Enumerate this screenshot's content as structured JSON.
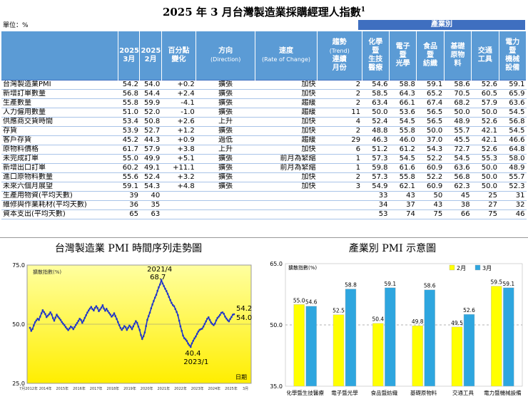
{
  "title": "2025 年 3 月台灣製造業採購經理人指數",
  "title_note": "1",
  "unit_label": "單位：%",
  "category_header": "產業別",
  "table": {
    "headers": [
      {
        "lines": [
          "2025",
          "3月"
        ]
      },
      {
        "lines": [
          "2025",
          "2月"
        ]
      },
      {
        "lines": [
          "百分點",
          "變化"
        ]
      },
      {
        "lines": [
          "方向",
          "(Direction)"
        ]
      },
      {
        "lines": [
          "速度",
          "(Rate of Change)"
        ]
      },
      {
        "lines": [
          "趨勢",
          "(Trend)",
          "連續",
          "月份"
        ]
      },
      {
        "lines": [
          "化學",
          "暨",
          "生技",
          "醫療"
        ]
      },
      {
        "lines": [
          "電子",
          "暨",
          "光學"
        ]
      },
      {
        "lines": [
          "食品",
          "暨",
          "紡織"
        ]
      },
      {
        "lines": [
          "基礎",
          "原物",
          "料"
        ]
      },
      {
        "lines": [
          "交通",
          "工具"
        ]
      },
      {
        "lines": [
          "電力",
          "暨",
          "機械",
          "設備"
        ]
      }
    ],
    "rows": [
      [
        "台灣製造業PMI",
        "54.2",
        "54.0",
        "+0.2",
        "擴張",
        "加快",
        "2",
        "54.6",
        "58.8",
        "59.1",
        "58.6",
        "52.6",
        "59.1"
      ],
      [
        "新增訂單數量",
        "56.8",
        "54.4",
        "+2.4",
        "擴張",
        "加快",
        "2",
        "58.5",
        "64.3",
        "65.2",
        "70.5",
        "60.5",
        "65.9"
      ],
      [
        "生產數量",
        "55.8",
        "59.9",
        "-4.1",
        "擴張",
        "趨緩",
        "2",
        "63.4",
        "66.1",
        "67.4",
        "68.2",
        "57.9",
        "63.6"
      ],
      [
        "人力僱用數量",
        "51.0",
        "52.0",
        "-1.0",
        "擴張",
        "趨緩",
        "11",
        "50.0",
        "53.6",
        "56.5",
        "50.0",
        "50.0",
        "54.5"
      ],
      [
        "供應商交貨時間",
        "53.4",
        "50.8",
        "+2.6",
        "上升",
        "加快",
        "4",
        "52.4",
        "54.5",
        "56.5",
        "48.9",
        "52.6",
        "56.8"
      ],
      [
        "存貨",
        "53.9",
        "52.7",
        "+1.2",
        "擴張",
        "加快",
        "2",
        "48.8",
        "55.8",
        "50.0",
        "55.7",
        "42.1",
        "54.5"
      ],
      [
        "客戶存貨",
        "45.2",
        "44.3",
        "+0.9",
        "過低",
        "趨緩",
        "29",
        "46.3",
        "46.0",
        "37.0",
        "45.5",
        "42.1",
        "46.6"
      ],
      [
        "原物料價格",
        "61.7",
        "57.9",
        "+3.8",
        "上升",
        "加快",
        "6",
        "51.2",
        "61.2",
        "54.3",
        "72.7",
        "52.6",
        "64.8"
      ],
      [
        "未完成訂單",
        "55.0",
        "49.9",
        "+5.1",
        "擴張",
        "前月為緊縮",
        "1",
        "57.3",
        "54.5",
        "52.2",
        "54.5",
        "55.3",
        "58.0"
      ],
      [
        "新增出口訂單",
        "60.2",
        "49.1",
        "+11.1",
        "擴張",
        "前月為緊縮",
        "1",
        "59.8",
        "61.6",
        "60.9",
        "63.6",
        "50.0",
        "48.9"
      ],
      [
        "進口原物料數量",
        "55.6",
        "52.4",
        "+3.2",
        "擴張",
        "加快",
        "2",
        "57.3",
        "55.8",
        "52.2",
        "56.8",
        "50.0",
        "55.7"
      ],
      [
        "未來六個月展望",
        "59.1",
        "54.3",
        "+4.8",
        "擴張",
        "加快",
        "3",
        "54.9",
        "62.1",
        "60.9",
        "62.3",
        "50.0",
        "52.3"
      ],
      [
        "生產用物資(平均天數)",
        "39",
        "40",
        "",
        "",
        "",
        "",
        "33",
        "43",
        "50",
        "45",
        "25",
        "31"
      ],
      [
        "維修與作業耗材(平均天數)",
        "36",
        "35",
        "",
        "",
        "",
        "",
        "34",
        "37",
        "43",
        "38",
        "27",
        "32"
      ],
      [
        "資本支出(平均天數)",
        "65",
        "63",
        "",
        "",
        "",
        "",
        "53",
        "74",
        "75",
        "66",
        "75",
        "46"
      ]
    ]
  },
  "colors": {
    "header_bg": "#5b9bd5",
    "category_bg": "#3f6fc0",
    "bar_feb": "#ffff00",
    "bar_mar": "#2ea6df",
    "line": "#1f35c8",
    "chart_bg_top": "#ffffa0",
    "chart_bg_bottom": "#ffee00"
  },
  "chart_data": [
    {
      "type": "line",
      "title": "台灣製造業 PMI 時間序列走勢圖",
      "ylabel": "擴散指數(%)",
      "xlabel": "日期",
      "ylim": [
        25.0,
        75.0
      ],
      "y_ticks": [
        "75.0",
        "50.0",
        "25.0"
      ],
      "x_ticks": [
        "7月2012年",
        "2014年",
        "2015年",
        "2016年",
        "2017年",
        "2018年",
        "2019年",
        "2020年",
        "2021年",
        "2022年",
        "2023年",
        "2024年",
        "2025年"
      ],
      "x_tick_last": "3月",
      "annotations": [
        {
          "label": "2021/4",
          "value_label": "68.7"
        },
        {
          "label": "40.4",
          "value_label": "2023/1"
        },
        {
          "label": "54.2",
          "value_label": "54.0"
        }
      ],
      "x_start": 2012.5,
      "x_end": 2025.25,
      "series": [
        {
          "values": [
            48.5,
            47.2,
            48.0,
            49.5,
            50.8,
            51.6,
            52.3,
            51.8,
            53.2,
            54.6,
            55.9,
            55.1,
            54.3,
            53.0,
            53.6,
            54.2,
            55.0,
            54.1,
            52.6,
            51.5,
            52.8,
            54.0,
            53.2,
            52.5,
            51.8,
            50.9,
            50.2,
            49.6,
            48.8,
            48.1,
            47.5,
            48.2,
            49.0,
            48.6,
            47.9,
            48.8,
            49.7,
            50.5,
            51.4,
            52.3,
            51.8,
            50.6,
            51.5,
            52.7,
            53.8,
            54.9,
            55.8,
            56.6,
            57.3,
            56.4,
            55.8,
            56.9,
            57.6,
            56.8,
            55.5,
            56.2,
            57.0,
            58.0,
            56.6,
            55.7,
            56.5,
            55.6,
            54.8,
            54.1,
            53.2,
            53.7,
            54.6,
            53.4,
            52.2,
            50.9,
            49.6,
            48.4,
            47.6,
            48.3,
            49.2,
            48.7,
            47.6,
            48.5,
            49.4,
            48.8,
            47.9,
            49.1,
            50.2,
            51.3,
            50.6,
            49.0,
            47.6,
            45.4,
            43.8,
            44.9,
            46.5,
            49.2,
            51.8,
            53.4,
            54.9,
            56.7,
            58.3,
            59.8,
            61.2,
            62.4,
            64.1,
            65.6,
            66.8,
            68.7,
            67.2,
            66.1,
            65.0,
            64.0,
            62.8,
            61.5,
            60.2,
            59.0,
            58.1,
            57.6,
            56.4,
            55.2,
            53.8,
            51.5,
            49.1,
            47.2,
            45.2,
            44.1,
            43.6,
            42.9,
            41.8,
            41.1,
            40.4,
            41.9,
            43.0,
            44.0,
            44.8,
            45.9,
            46.9,
            47.6,
            47.9,
            48.1,
            49.0,
            50.1,
            51.2,
            52.3,
            52.9,
            51.8,
            50.7,
            50.1,
            49.6,
            50.2,
            51.6,
            52.6,
            53.2,
            53.9,
            54.8,
            55.0,
            54.4,
            53.2,
            52.4,
            51.7,
            51.2,
            52.2,
            53.0,
            54.0,
            54.2
          ]
        }
      ]
    },
    {
      "type": "bar",
      "title": "產業別 PMI 示意圖",
      "ylabel": "擴散指數(%)",
      "ylim": [
        35.0,
        65.0
      ],
      "y_ticks": [
        "65.0",
        "50.0",
        "35.0"
      ],
      "legend": "top-right",
      "categories": [
        "化學暨生技醫療",
        "電子暨光學",
        "食品暨紡織",
        "基礎原物料",
        "交通工具",
        "電力暨機械設備"
      ],
      "series": [
        {
          "name": "2月",
          "values": [
            55.0,
            52.5,
            50.4,
            49.8,
            49.5,
            59.5
          ],
          "labels": [
            "55.0",
            "52.5",
            "50.4",
            "49.8",
            "49.5",
            "59.5"
          ]
        },
        {
          "name": "3月",
          "values": [
            54.6,
            58.8,
            59.1,
            58.6,
            52.6,
            59.1
          ],
          "labels": [
            "54.6",
            "58.8",
            "59.1",
            "58.6",
            "52.6",
            "59.1"
          ]
        }
      ]
    }
  ]
}
